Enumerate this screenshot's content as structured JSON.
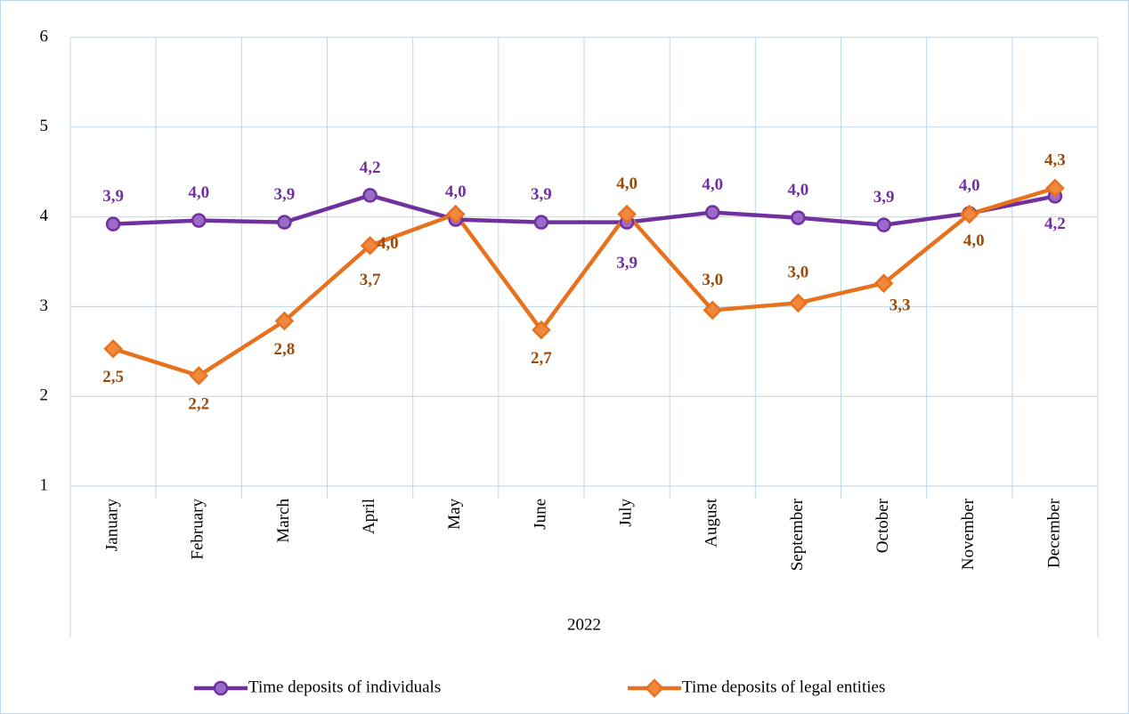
{
  "chart_data": {
    "type": "line",
    "categories": [
      "January",
      "February",
      "March",
      "April",
      "May",
      "June",
      "July",
      "August",
      "September",
      "October",
      "November",
      "December"
    ],
    "x_group_label": "2022",
    "series": [
      {
        "name": "Time deposits of individuals",
        "color": "#7030a0",
        "label_color": "#7030a0",
        "marker": "circle",
        "values": [
          3.92,
          3.96,
          3.94,
          4.24,
          3.97,
          3.94,
          3.94,
          4.05,
          3.99,
          3.91,
          4.04,
          4.23
        ],
        "value_labels": [
          "3,9",
          "4,0",
          "3,9",
          "4,2",
          "4,0",
          "3,9",
          "3,9",
          "4,0",
          "4,0",
          "3,9",
          "4,0",
          "4,2"
        ]
      },
      {
        "name": "Time deposits of legal entities",
        "color": "#e8711e",
        "label_color": "#9c4a0a",
        "marker": "diamond",
        "values": [
          2.53,
          2.23,
          2.84,
          3.68,
          4.03,
          2.74,
          4.03,
          2.96,
          3.04,
          3.26,
          4.03,
          4.32
        ],
        "value_labels": [
          "2,5",
          "2,2",
          "2,8",
          "3,7",
          "4,0",
          "2,7",
          "4,0",
          "3,0",
          "3,0",
          "3,3",
          "4,0",
          "4,3"
        ]
      }
    ],
    "ylim": [
      1,
      6
    ],
    "yticks": [
      1,
      2,
      3,
      4,
      5,
      6
    ],
    "grid": true,
    "legend": "bottom"
  }
}
